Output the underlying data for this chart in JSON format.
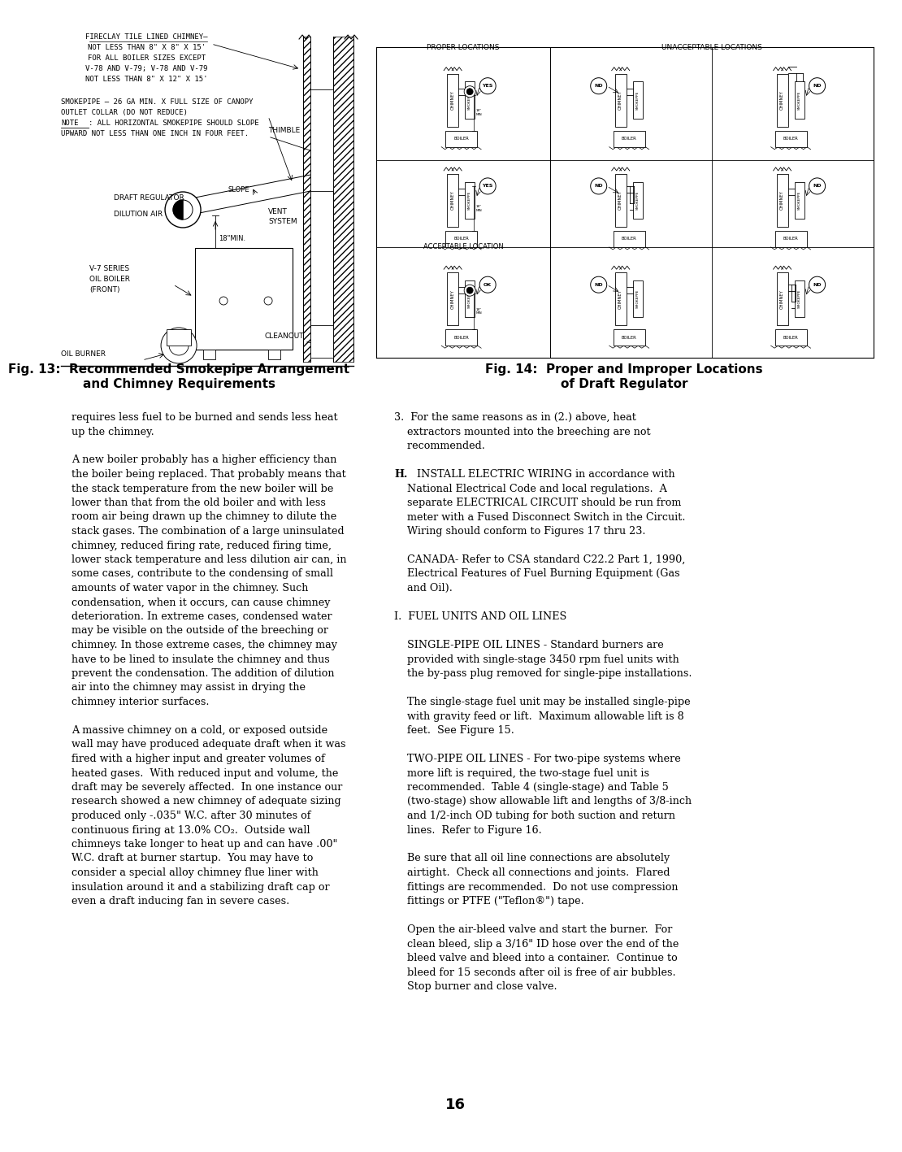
{
  "page_number": "16",
  "bg": "#ffffff",
  "fg": "#000000",
  "fig13_title_line1": "Fig. 13:  Recommended Smokepipe Arrangement",
  "fig13_title_line2": "and Chimney Requirements",
  "fig14_title_line1": "Fig. 14:  Proper and Improper Locations",
  "fig14_title_line2": "of Draft Regulator",
  "body_left": [
    "requires less fuel to be burned and sends less heat",
    "up the chimney.",
    " ",
    "A new boiler probably has a higher efficiency than",
    "the boiler being replaced. That probably means that",
    "the stack temperature from the new boiler will be",
    "lower than that from the old boiler and with less",
    "room air being drawn up the chimney to dilute the",
    "stack gases. The combination of a large uninsulated",
    "chimney, reduced firing rate, reduced firing time,",
    "lower stack temperature and less dilution air can, in",
    "some cases, contribute to the condensing of small",
    "amounts of water vapor in the chimney. Such",
    "condensation, when it occurs, can cause chimney",
    "deterioration. In extreme cases, condensed water",
    "may be visible on the outside of the breeching or",
    "chimney. In those extreme cases, the chimney may",
    "have to be lined to insulate the chimney and thus",
    "prevent the condensation. The addition of dilution",
    "air into the chimney may assist in drying the",
    "chimney interior surfaces.",
    " ",
    "A massive chimney on a cold, or exposed outside",
    "wall may have produced adequate draft when it was",
    "fired with a higher input and greater volumes of",
    "heated gases.  With reduced input and volume, the",
    "draft may be severely affected.  In one instance our",
    "research showed a new chimney of adequate sizing",
    "produced only -.035\" W.C. after 30 minutes of",
    "continuous firing at 13.0% CO₂.  Outside wall",
    "chimneys take longer to heat up and can have .00\"",
    "W.C. draft at burner startup.  You may have to",
    "consider a special alloy chimney flue liner with",
    "insulation around it and a stabilizing draft cap or",
    "even a draft inducing fan in severe cases."
  ],
  "body_right": [
    {
      "t": "3.  For the same reasons as in (2.) above, heat",
      "indent": 0,
      "bold": false
    },
    {
      "t": "    extractors mounted into the breeching are not",
      "indent": 0,
      "bold": false
    },
    {
      "t": "    recommended.",
      "indent": 0,
      "bold": false
    },
    {
      "t": " ",
      "indent": 0,
      "bold": false
    },
    {
      "t": "H.",
      "indent": 0,
      "bold": true,
      "inline": "  INSTALL ELECTRIC WIRING in accordance with"
    },
    {
      "t": "    National Electrical Code and local regulations.  A",
      "indent": 0,
      "bold": false
    },
    {
      "t": "    separate ELECTRICAL CIRCUIT should be run from",
      "indent": 0,
      "bold": false
    },
    {
      "t": "    meter with a Fused Disconnect Switch in the Circuit.",
      "indent": 0,
      "bold": false
    },
    {
      "t": "    Wiring should conform to Figures 17 thru 23.",
      "indent": 0,
      "bold": false
    },
    {
      "t": " ",
      "indent": 0,
      "bold": false
    },
    {
      "t": "    CANADA- Refer to CSA standard C22.2 Part 1, 1990,",
      "indent": 0,
      "bold": false
    },
    {
      "t": "    Electrical Features of Fuel Burning Equipment (Gas",
      "indent": 0,
      "bold": false
    },
    {
      "t": "    and Oil).",
      "indent": 0,
      "bold": false
    },
    {
      "t": " ",
      "indent": 0,
      "bold": false
    },
    {
      "t": "I.  FUEL UNITS AND OIL LINES",
      "indent": 0,
      "bold": false
    },
    {
      "t": " ",
      "indent": 0,
      "bold": false
    },
    {
      "t": "    SINGLE-PIPE OIL LINES - Standard burners are",
      "indent": 0,
      "bold": false
    },
    {
      "t": "    provided with single-stage 3450 rpm fuel units with",
      "indent": 0,
      "bold": false
    },
    {
      "t": "    the by-pass plug removed for single-pipe installations.",
      "indent": 0,
      "bold": false
    },
    {
      "t": " ",
      "indent": 0,
      "bold": false
    },
    {
      "t": "    The single-stage fuel unit may be installed single-pipe",
      "indent": 0,
      "bold": false
    },
    {
      "t": "    with gravity feed or lift.  Maximum allowable lift is 8",
      "indent": 0,
      "bold": false
    },
    {
      "t": "    feet.  See Figure 15.",
      "indent": 0,
      "bold": false
    },
    {
      "t": " ",
      "indent": 0,
      "bold": false
    },
    {
      "t": "    TWO-PIPE OIL LINES - For two-pipe systems where",
      "indent": 0,
      "bold": false
    },
    {
      "t": "    more lift is required, the two-stage fuel unit is",
      "indent": 0,
      "bold": false
    },
    {
      "t": "    recommended.  Table 4 (single-stage) and Table 5",
      "indent": 0,
      "bold": false
    },
    {
      "t": "    (two-stage) show allowable lift and lengths of 3/8-inch",
      "indent": 0,
      "bold": false
    },
    {
      "t": "    and 1/2-inch OD tubing for both suction and return",
      "indent": 0,
      "bold": false
    },
    {
      "t": "    lines.  Refer to Figure 16.",
      "indent": 0,
      "bold": false
    },
    {
      "t": " ",
      "indent": 0,
      "bold": false
    },
    {
      "t": "    Be sure that all oil line connections are absolutely",
      "indent": 0,
      "bold": false
    },
    {
      "t": "    airtight.  Check all connections and joints.  Flared",
      "indent": 0,
      "bold": false
    },
    {
      "t": "    fittings are recommended.  Do not use compression",
      "indent": 0,
      "bold": false
    },
    {
      "t": "    fittings or PTFE (\"Teflon®\") tape.",
      "indent": 0,
      "bold": false
    },
    {
      "t": " ",
      "indent": 0,
      "bold": false
    },
    {
      "t": "    Open the air-bleed valve and start the burner.  For",
      "indent": 0,
      "bold": false
    },
    {
      "t": "    clean bleed, slip a 3/16\" ID hose over the end of the",
      "indent": 0,
      "bold": false
    },
    {
      "t": "    bleed valve and bleed into a container.  Continue to",
      "indent": 0,
      "bold": false
    },
    {
      "t": "    bleed for 15 seconds after oil is free of air bubbles.",
      "indent": 0,
      "bold": false
    },
    {
      "t": "    Stop burner and close valve.",
      "indent": 0,
      "bold": false
    }
  ]
}
